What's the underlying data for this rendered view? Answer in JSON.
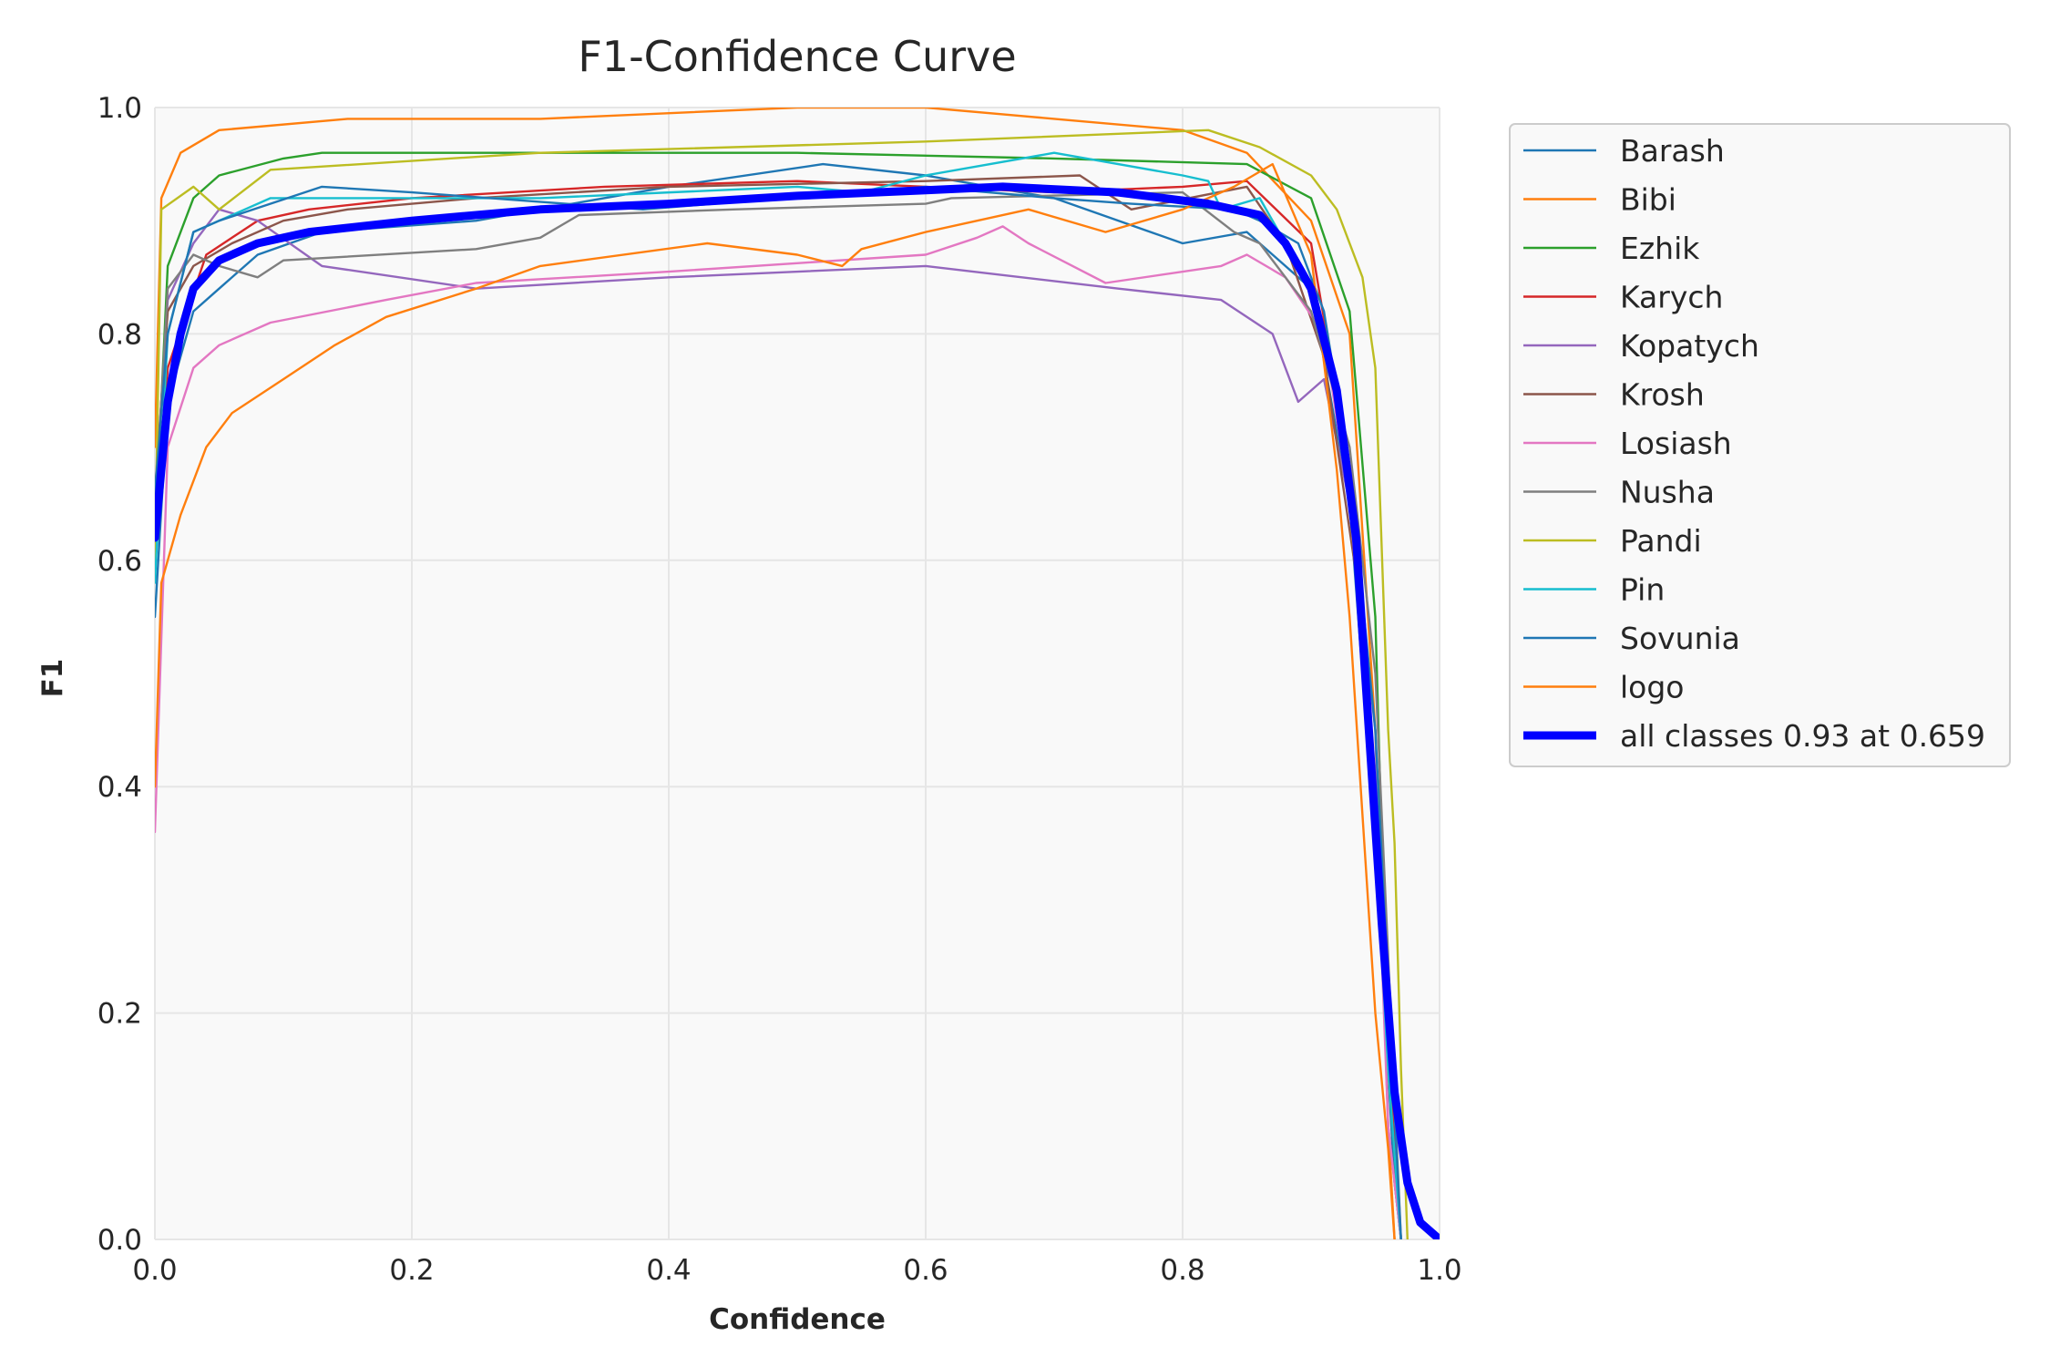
{
  "chart_data": {
    "type": "line",
    "title": "F1-Confidence Curve",
    "xlabel": "Confidence",
    "ylabel": "F1",
    "xlim": [
      0,
      1
    ],
    "ylim": [
      0,
      1
    ],
    "x_ticks": [
      "0.0",
      "0.2",
      "0.4",
      "0.6",
      "0.8",
      "1.0"
    ],
    "y_ticks": [
      "0.0",
      "0.2",
      "0.4",
      "0.6",
      "0.8",
      "1.0"
    ],
    "grid": true,
    "legend_position": "outside-right",
    "series": [
      {
        "name": "Barash",
        "color": "#1f77b4",
        "x": [
          0,
          0.01,
          0.03,
          0.05,
          0.08,
          0.13,
          0.25,
          0.4,
          0.52,
          0.6,
          0.7,
          0.8,
          0.85,
          0.9,
          0.93,
          0.95,
          0.965,
          0.97
        ],
        "y": [
          0.55,
          0.74,
          0.82,
          0.84,
          0.87,
          0.89,
          0.9,
          0.93,
          0.95,
          0.94,
          0.92,
          0.88,
          0.89,
          0.84,
          0.65,
          0.35,
          0.05,
          0
        ]
      },
      {
        "name": "Bibi",
        "color": "#ff7f0e",
        "x": [
          0,
          0.005,
          0.02,
          0.05,
          0.15,
          0.3,
          0.5,
          0.6,
          0.7,
          0.8,
          0.85,
          0.9,
          0.93,
          0.95,
          0.96,
          0.965
        ],
        "y": [
          0.7,
          0.92,
          0.96,
          0.98,
          0.99,
          0.99,
          1.0,
          1.0,
          0.99,
          0.98,
          0.96,
          0.9,
          0.8,
          0.45,
          0.1,
          0
        ]
      },
      {
        "name": "Ezhik",
        "color": "#2ca02c",
        "x": [
          0,
          0.01,
          0.03,
          0.05,
          0.1,
          0.13,
          0.3,
          0.5,
          0.7,
          0.85,
          0.9,
          0.93,
          0.95,
          0.96,
          0.97
        ],
        "y": [
          0.62,
          0.86,
          0.92,
          0.94,
          0.955,
          0.96,
          0.96,
          0.96,
          0.955,
          0.95,
          0.92,
          0.82,
          0.55,
          0.15,
          0
        ]
      },
      {
        "name": "Karych",
        "color": "#d62728",
        "x": [
          0,
          0.01,
          0.04,
          0.08,
          0.12,
          0.2,
          0.35,
          0.5,
          0.6,
          0.7,
          0.8,
          0.85,
          0.9,
          0.93,
          0.95,
          0.965,
          0.97
        ],
        "y": [
          0.6,
          0.77,
          0.87,
          0.9,
          0.91,
          0.92,
          0.93,
          0.935,
          0.93,
          0.925,
          0.93,
          0.935,
          0.88,
          0.68,
          0.4,
          0.08,
          0
        ]
      },
      {
        "name": "Kopatych",
        "color": "#9467bd",
        "x": [
          0,
          0.01,
          0.03,
          0.05,
          0.08,
          0.13,
          0.25,
          0.4,
          0.6,
          0.75,
          0.83,
          0.87,
          0.89,
          0.91,
          0.93,
          0.95,
          0.96,
          0.97
        ],
        "y": [
          0.65,
          0.83,
          0.88,
          0.91,
          0.9,
          0.86,
          0.84,
          0.85,
          0.86,
          0.84,
          0.83,
          0.8,
          0.74,
          0.76,
          0.65,
          0.45,
          0.1,
          0
        ]
      },
      {
        "name": "Krosh",
        "color": "#8c564b",
        "x": [
          0,
          0.01,
          0.03,
          0.06,
          0.1,
          0.15,
          0.25,
          0.4,
          0.6,
          0.72,
          0.76,
          0.85,
          0.88,
          0.91,
          0.94,
          0.96,
          0.97
        ],
        "y": [
          0.66,
          0.82,
          0.86,
          0.88,
          0.9,
          0.91,
          0.92,
          0.93,
          0.935,
          0.94,
          0.91,
          0.93,
          0.88,
          0.78,
          0.55,
          0.15,
          0
        ]
      },
      {
        "name": "Losiash",
        "color": "#e377c2",
        "x": [
          0,
          0.01,
          0.03,
          0.05,
          0.09,
          0.18,
          0.25,
          0.4,
          0.6,
          0.64,
          0.66,
          0.68,
          0.74,
          0.83,
          0.85,
          0.88,
          0.91,
          0.93,
          0.95,
          0.96,
          0.97
        ],
        "y": [
          0.36,
          0.7,
          0.77,
          0.79,
          0.81,
          0.83,
          0.845,
          0.855,
          0.87,
          0.885,
          0.895,
          0.88,
          0.845,
          0.86,
          0.87,
          0.85,
          0.8,
          0.65,
          0.4,
          0.1,
          0
        ]
      },
      {
        "name": "Nusha",
        "color": "#7f7f7f",
        "x": [
          0,
          0.01,
          0.03,
          0.05,
          0.08,
          0.1,
          0.25,
          0.3,
          0.33,
          0.45,
          0.6,
          0.62,
          0.8,
          0.84,
          0.86,
          0.9,
          0.93,
          0.95,
          0.97
        ],
        "y": [
          0.64,
          0.84,
          0.87,
          0.86,
          0.85,
          0.865,
          0.875,
          0.885,
          0.905,
          0.91,
          0.915,
          0.92,
          0.925,
          0.89,
          0.88,
          0.82,
          0.7,
          0.5,
          0
        ]
      },
      {
        "name": "Pandi",
        "color": "#bcbd22",
        "x": [
          0,
          0.005,
          0.03,
          0.05,
          0.09,
          0.3,
          0.6,
          0.82,
          0.86,
          0.9,
          0.92,
          0.94,
          0.95,
          0.96,
          0.965,
          0.97,
          0.975
        ],
        "y": [
          0.6,
          0.91,
          0.93,
          0.91,
          0.945,
          0.96,
          0.97,
          0.98,
          0.965,
          0.94,
          0.91,
          0.85,
          0.77,
          0.45,
          0.35,
          0.15,
          0
        ]
      },
      {
        "name": "Pin",
        "color": "#17becf",
        "x": [
          0,
          0.01,
          0.03,
          0.07,
          0.09,
          0.3,
          0.5,
          0.55,
          0.6,
          0.7,
          0.8,
          0.82,
          0.83,
          0.86,
          0.88,
          0.9,
          0.92,
          0.94,
          0.96,
          0.97
        ],
        "y": [
          0.58,
          0.8,
          0.89,
          0.91,
          0.92,
          0.92,
          0.93,
          0.925,
          0.94,
          0.96,
          0.94,
          0.935,
          0.91,
          0.92,
          0.88,
          0.84,
          0.74,
          0.55,
          0.15,
          0
        ]
      },
      {
        "name": "Sovunia",
        "color": "#1f77b4",
        "x": [
          0,
          0.01,
          0.03,
          0.05,
          0.13,
          0.2,
          0.38,
          0.6,
          0.7,
          0.76,
          0.84,
          0.86,
          0.89,
          0.91,
          0.93,
          0.95,
          0.97
        ],
        "y": [
          0.66,
          0.8,
          0.89,
          0.9,
          0.93,
          0.925,
          0.91,
          0.93,
          0.92,
          0.915,
          0.91,
          0.9,
          0.88,
          0.82,
          0.68,
          0.45,
          0
        ]
      },
      {
        "name": "logo",
        "color": "#ff7f0e",
        "x": [
          0,
          0.005,
          0.02,
          0.04,
          0.06,
          0.1,
          0.14,
          0.18,
          0.25,
          0.3,
          0.43,
          0.5,
          0.535,
          0.55,
          0.6,
          0.68,
          0.74,
          0.8,
          0.84,
          0.87,
          0.9,
          0.92,
          0.93,
          0.95,
          0.96,
          0.965
        ],
        "y": [
          0.4,
          0.58,
          0.64,
          0.7,
          0.73,
          0.76,
          0.79,
          0.815,
          0.84,
          0.86,
          0.88,
          0.87,
          0.86,
          0.875,
          0.89,
          0.91,
          0.89,
          0.91,
          0.93,
          0.95,
          0.87,
          0.68,
          0.55,
          0.2,
          0.08,
          0
        ]
      },
      {
        "name": "all classes 0.93 at 0.659",
        "color": "#0000ff",
        "bold": true,
        "x": [
          0,
          0.01,
          0.02,
          0.03,
          0.05,
          0.08,
          0.12,
          0.2,
          0.3,
          0.4,
          0.5,
          0.6,
          0.66,
          0.75,
          0.82,
          0.86,
          0.88,
          0.9,
          0.92,
          0.935,
          0.945,
          0.955,
          0.965,
          0.975,
          0.985,
          1.0
        ],
        "y": [
          0.62,
          0.74,
          0.8,
          0.84,
          0.865,
          0.88,
          0.89,
          0.9,
          0.91,
          0.915,
          0.922,
          0.927,
          0.93,
          0.925,
          0.915,
          0.905,
          0.88,
          0.84,
          0.75,
          0.62,
          0.45,
          0.28,
          0.13,
          0.05,
          0.015,
          0
        ]
      }
    ]
  }
}
